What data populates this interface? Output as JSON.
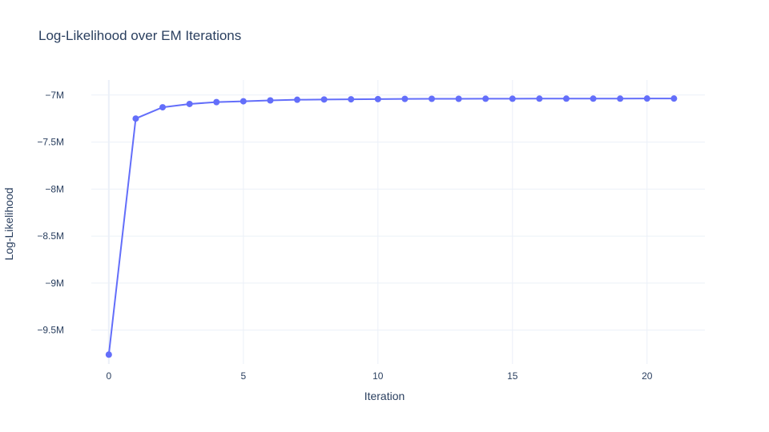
{
  "chart_data": {
    "type": "line",
    "title": "Log-Likelihood over EM Iterations",
    "xlabel": "Iteration",
    "ylabel": "Log-Likelihood",
    "x": [
      0,
      1,
      2,
      3,
      4,
      5,
      6,
      7,
      8,
      9,
      10,
      11,
      12,
      13,
      14,
      15,
      16,
      17,
      18,
      19,
      20,
      21
    ],
    "series": [
      {
        "values": [
          -9.76,
          -7.25,
          -7.13,
          -7.095,
          -7.075,
          -7.066,
          -7.057,
          -7.05,
          -7.047,
          -7.045,
          -7.043,
          -7.041,
          -7.04,
          -7.04,
          -7.039,
          -7.039,
          -7.038,
          -7.038,
          -7.038,
          -7.038,
          -7.037,
          -7.037
        ],
        "color": "#636efa"
      }
    ],
    "x_ticks": [
      0,
      5,
      10,
      15,
      20
    ],
    "x_tick_labels": [
      "0",
      "5",
      "10",
      "15",
      "20"
    ],
    "y_ticks": [
      -9.5,
      -9,
      -8.5,
      -8,
      -7.5,
      -7
    ],
    "y_tick_labels": [
      "−9.5M",
      "−9M",
      "−8.5M",
      "−8M",
      "−7.5M",
      "−7M"
    ],
    "xlim": [
      -0.65,
      22.15
    ],
    "ylim": [
      -9.86,
      -6.84
    ],
    "grid": true,
    "legend": "none"
  }
}
